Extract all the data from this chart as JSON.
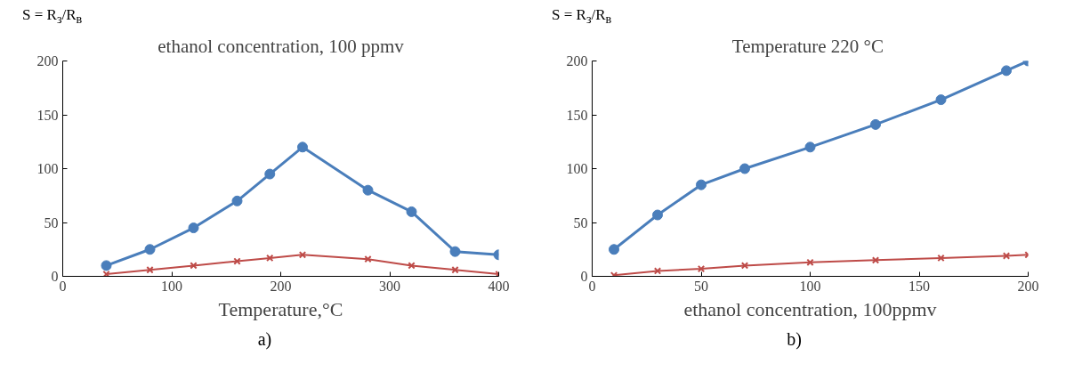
{
  "chart_data": [
    {
      "type": "line",
      "title": "ethanol concentration, 100 ppmv",
      "xlabel": "Temperature,°C",
      "ylabel": "S = R$_{з}$/R$_{в}$",
      "annotations": [
        "a)"
      ],
      "x": [
        40,
        80,
        120,
        160,
        190,
        220,
        280,
        320,
        360,
        400
      ],
      "series": [
        {
          "color": "#4a7ebb",
          "marker": "circle",
          "values": [
            10,
            25,
            45,
            70,
            95,
            120,
            80,
            60,
            23,
            20
          ]
        },
        {
          "color": "#be4b48",
          "marker": "cross",
          "values": [
            2,
            6,
            10,
            14,
            17,
            20,
            16,
            10,
            6,
            2
          ]
        }
      ],
      "xlim": [
        0,
        400
      ],
      "xticks": [
        0,
        100,
        200,
        300,
        400
      ],
      "ylim": [
        0,
        200
      ],
      "yticks": [
        0,
        50,
        100,
        150,
        200
      ],
      "grid": false
    },
    {
      "type": "line",
      "title": "Temperature  220 °C",
      "xlabel": "ethanol concentration, 100ppmv",
      "ylabel": "S = R$_{з}$/R$_{в}$",
      "annotations": [
        "b)"
      ],
      "x": [
        10,
        30,
        50,
        70,
        100,
        130,
        160,
        190,
        200
      ],
      "series": [
        {
          "color": "#4a7ebb",
          "marker": "circle",
          "values": [
            25,
            57,
            85,
            100,
            120,
            141,
            164,
            191,
            200
          ]
        },
        {
          "color": "#be4b48",
          "marker": "cross",
          "values": [
            1,
            5,
            7,
            10,
            13,
            15,
            17,
            19,
            20
          ]
        }
      ],
      "xlim": [
        0,
        200
      ],
      "xticks": [
        0,
        50,
        100,
        150,
        200
      ],
      "ylim": [
        0,
        200
      ],
      "yticks": [
        0,
        50,
        100,
        150,
        200
      ],
      "grid": false
    }
  ]
}
